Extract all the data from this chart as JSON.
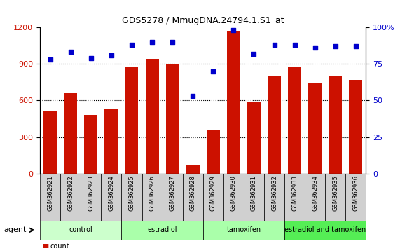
{
  "title": "GDS5278 / MmugDNA.24794.1.S1_at",
  "samples": [
    "GSM362921",
    "GSM362922",
    "GSM362923",
    "GSM362924",
    "GSM362925",
    "GSM362926",
    "GSM362927",
    "GSM362928",
    "GSM362929",
    "GSM362930",
    "GSM362931",
    "GSM362932",
    "GSM362933",
    "GSM362934",
    "GSM362935",
    "GSM362936"
  ],
  "counts": [
    510,
    660,
    480,
    530,
    880,
    940,
    900,
    75,
    360,
    1170,
    590,
    800,
    870,
    740,
    800,
    770
  ],
  "percentiles": [
    78,
    83,
    79,
    81,
    88,
    90,
    90,
    53,
    70,
    98,
    82,
    88,
    88,
    86,
    87,
    87
  ],
  "groups": [
    {
      "label": "control",
      "start": 0,
      "end": 4,
      "color": "#ccffcc"
    },
    {
      "label": "estradiol",
      "start": 4,
      "end": 8,
      "color": "#aaffaa"
    },
    {
      "label": "tamoxifen",
      "start": 8,
      "end": 12,
      "color": "#aaffaa"
    },
    {
      "label": "estradiol and tamoxifen",
      "start": 12,
      "end": 16,
      "color": "#55ee55"
    }
  ],
  "bar_color": "#cc1100",
  "dot_color": "#0000cc",
  "ylim_left": [
    0,
    1200
  ],
  "ylim_right": [
    0,
    100
  ],
  "yticks_left": [
    0,
    300,
    600,
    900,
    1200
  ],
  "yticks_right": [
    0,
    25,
    50,
    75,
    100
  ],
  "background_color": "#ffffff",
  "plot_bg_color": "#ffffff",
  "tick_label_color_left": "#cc1100",
  "tick_label_color_right": "#0000cc",
  "xtick_label_fontsize": 6,
  "title_fontsize": 9,
  "group_label_fontsize": 7,
  "legend_fontsize": 7,
  "agent_fontsize": 8,
  "bar_width": 0.65
}
